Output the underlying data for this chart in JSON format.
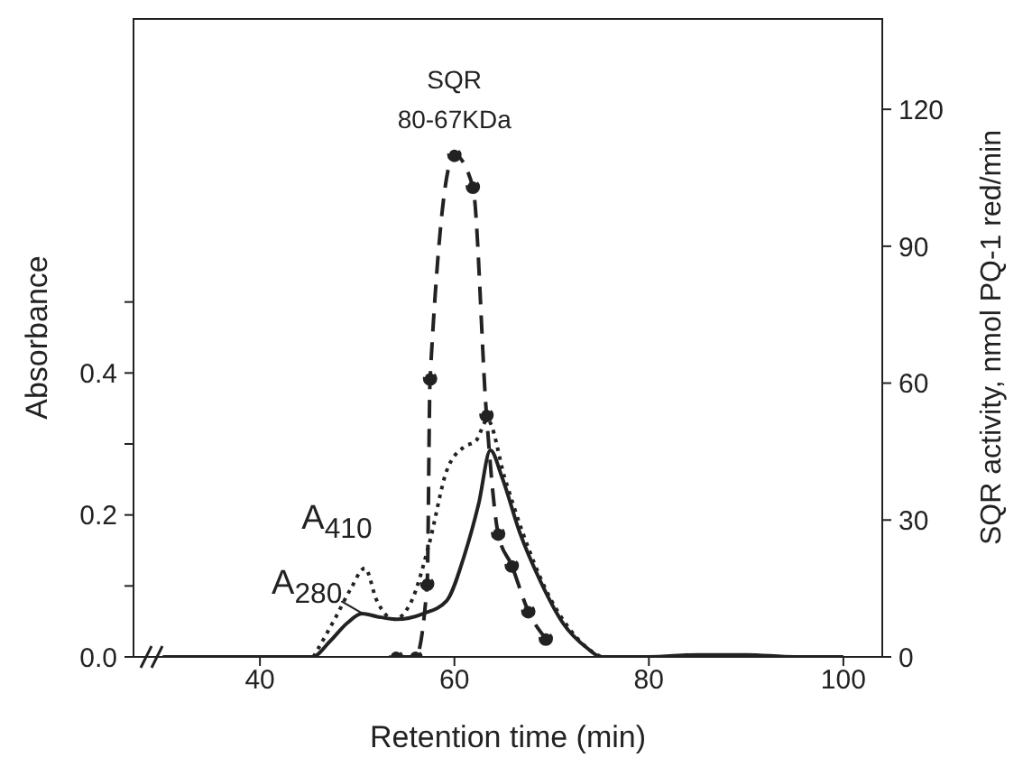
{
  "chart_data": {
    "type": "line",
    "xlabel": "Retention time (min)",
    "ylabel": "Absorbance",
    "y2label": "SQR activity, nmol PQ-1 red/min",
    "xlim": [
      27,
      104
    ],
    "xticks": [
      40,
      60,
      80,
      100
    ],
    "ylim": [
      0,
      0.9
    ],
    "yticks": [
      {
        "value": 0,
        "label": "0.0"
      },
      {
        "value": 0.1,
        "label": null
      },
      {
        "value": 0.2,
        "label": "0.2"
      },
      {
        "value": 0.3,
        "label": null
      },
      {
        "value": 0.4,
        "label": "0.4"
      },
      {
        "value": 0.5,
        "label": null
      }
    ],
    "y2lim": [
      0,
      140
    ],
    "y2ticks": [
      0,
      30,
      60,
      90,
      120
    ],
    "series": [
      {
        "name": "A$_{280}$",
        "color": "#222222",
        "line_style": "solid",
        "marker": "none",
        "x": [
          30,
          40,
          45.4,
          47.2,
          49,
          50.5,
          52,
          54.1,
          56.8,
          59.2,
          61,
          62.5,
          63.7,
          64.9,
          66.7,
          68.8,
          71.2,
          73.6,
          75.1,
          80,
          85,
          90,
          95,
          100
        ],
        "values": [
          0,
          0,
          0,
          0.022,
          0.048,
          0.061,
          0.057,
          0.053,
          0.061,
          0.079,
          0.142,
          0.216,
          0.291,
          0.253,
          0.176,
          0.108,
          0.047,
          0.013,
          0,
          0,
          0.003,
          0.003,
          0,
          0
        ]
      },
      {
        "name": "A$_{410}$",
        "color": "#222222",
        "line_style": "dotted",
        "marker": "none",
        "x": [
          45.5,
          47.8,
          49.3,
          50.8,
          52,
          53.8,
          55.6,
          57.4,
          59.2,
          61,
          62.2,
          63.4,
          65.2,
          67,
          69.4,
          71.8,
          74.2,
          75.1
        ],
        "values": [
          0,
          0.056,
          0.095,
          0.125,
          0.08,
          0.053,
          0.079,
          0.159,
          0.262,
          0.296,
          0.304,
          0.334,
          0.251,
          0.176,
          0.095,
          0.04,
          0.007,
          0
        ]
      },
      {
        "color": "#222222",
        "line_style": "dashed",
        "marker": "circle",
        "axis": "y2",
        "x": [
          54,
          56,
          57.2,
          57.5,
          60,
          61.9,
          63.3,
          64.5,
          65.9,
          67.6,
          69.4
        ],
        "values": [
          0,
          0,
          16,
          61,
          110,
          103,
          53,
          27,
          20,
          10,
          4
        ]
      }
    ],
    "annotations": [
      "SQR",
      "80-67KDa"
    ]
  }
}
